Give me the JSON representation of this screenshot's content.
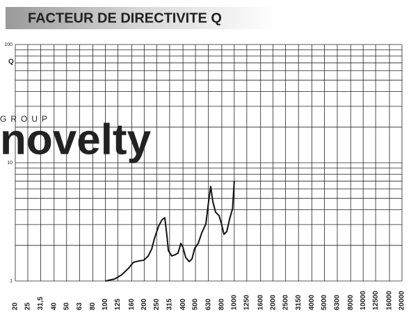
{
  "chart_data": {
    "type": "line",
    "title": "FACTEUR DE DIRECTIVITE Q",
    "y_label": "Q",
    "watermark": [
      "GROUP",
      "novelty"
    ],
    "log_x": true,
    "log_y": true,
    "grid": true,
    "minor_grid": true,
    "xlim": [
      20,
      20000
    ],
    "ylim": [
      1,
      100
    ],
    "xticks": [
      20,
      25,
      {
        "value": 31.5,
        "label": "31,5"
      },
      40,
      50,
      63,
      80,
      100,
      125,
      160,
      200,
      250,
      315,
      400,
      500,
      630,
      800,
      1000,
      1250,
      1600,
      2000,
      2500,
      3150,
      4000,
      5000,
      6300,
      8000,
      10000,
      12500,
      16000,
      20000
    ],
    "yticks": [
      1,
      10,
      100
    ],
    "series": [
      {
        "color": "#111111",
        "x": [
          100,
          118,
          134,
          152,
          165,
          183,
          199,
          215,
          229,
          240,
          259,
          275,
          289,
          300,
          308,
          327,
          348,
          366,
          385,
          400,
          420,
          447,
          470,
          493,
          525,
          559,
          602,
          632,
          656,
          682,
          716,
          762,
          791,
          832,
          875,
          920,
          970,
          1000
        ],
        "values": [
          1,
          1.04,
          1.13,
          1.29,
          1.44,
          1.48,
          1.5,
          1.63,
          1.87,
          2.28,
          2.92,
          3.29,
          3.43,
          2.44,
          1.81,
          1.63,
          1.67,
          1.72,
          2.08,
          1.92,
          1.58,
          1.46,
          1.54,
          1.89,
          2.08,
          2.55,
          3.04,
          4.69,
          6.31,
          4.69,
          3.82,
          3.57,
          3.12,
          2.48,
          2.62,
          3.34,
          4.09,
          7.03
        ]
      }
    ]
  }
}
